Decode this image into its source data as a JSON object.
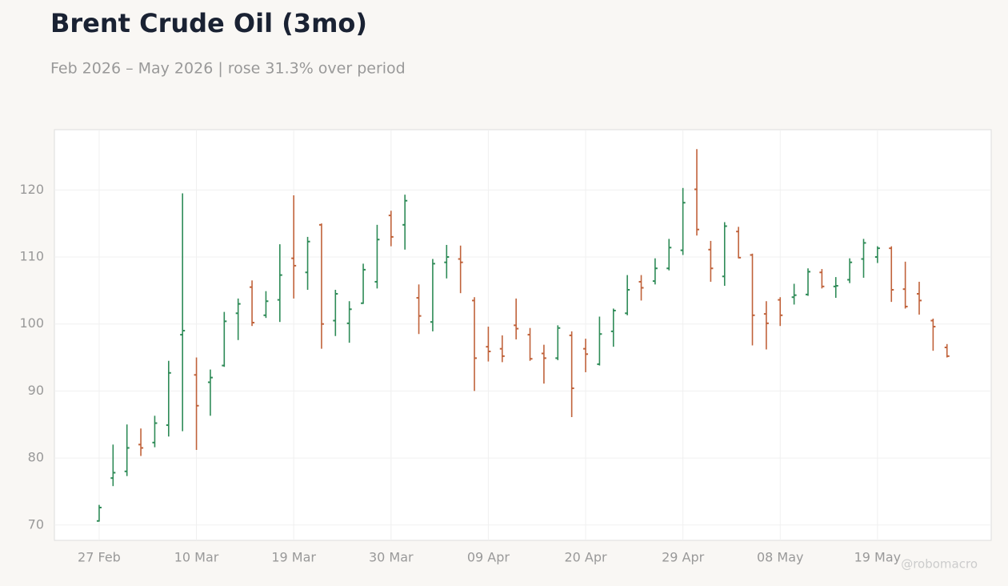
{
  "chart_data": {
    "type": "ohlc",
    "title": "Brent Crude Oil (3mo)",
    "subtitle": "Feb 2026 – May 2026 | rose 31.3% over period",
    "watermark": "@robomacro",
    "categories": [
      "27 Feb",
      null,
      null,
      null,
      null,
      null,
      null,
      "10 Mar",
      null,
      null,
      null,
      null,
      null,
      null,
      "19 Mar",
      null,
      null,
      null,
      null,
      null,
      null,
      "30 Mar",
      null,
      null,
      null,
      null,
      null,
      null,
      "09 Apr",
      null,
      null,
      null,
      null,
      null,
      null,
      "20 Apr",
      null,
      null,
      null,
      null,
      null,
      null,
      "29 Apr",
      null,
      null,
      null,
      null,
      null,
      null,
      "08 May",
      null,
      null,
      null,
      null,
      null,
      null,
      "19 May",
      null,
      null,
      null,
      null,
      null
    ],
    "open": [
      70.6,
      77,
      78,
      82,
      82.3,
      84.9,
      98.4,
      92.4,
      91.3,
      93.8,
      101.6,
      105.5,
      101.3,
      103.6,
      109.8,
      107.7,
      114.8,
      100.5,
      100.1,
      103.1,
      106.3,
      116.2,
      114.8,
      103.9,
      100.3,
      109.2,
      109.7,
      103.5,
      96.6,
      96.3,
      99.8,
      98.4,
      95.6,
      94.9,
      98.3,
      96.3,
      94,
      98.9,
      101.6,
      106.3,
      106.4,
      108.3,
      111,
      120.1,
      111.1,
      107.1,
      113.8,
      110.3,
      101.5,
      103.6,
      104,
      104.4,
      107.7,
      105.6,
      106.6,
      109.7,
      110,
      111.3,
      105.2,
      104.5,
      100.5,
      96.5
    ],
    "high": [
      73,
      82,
      85,
      84.4,
      86.3,
      94.5,
      119.5,
      95,
      93.2,
      101.8,
      103.8,
      106.5,
      104.9,
      111.9,
      119.2,
      113,
      115,
      105.1,
      103.4,
      109,
      114.8,
      116.9,
      119.3,
      105.9,
      109.7,
      111.8,
      111.7,
      104,
      99.6,
      98.3,
      103.8,
      99.4,
      96.9,
      99.8,
      98.9,
      97.8,
      101.1,
      102.3,
      107.3,
      107.3,
      109.8,
      112.7,
      120.3,
      126.1,
      112.4,
      115.2,
      114.5,
      110.5,
      103.4,
      104,
      106,
      108.3,
      108.2,
      107,
      109.8,
      112.7,
      111.6,
      111.6,
      109.3,
      106.3,
      100.8,
      97
    ],
    "low": [
      70.5,
      75.8,
      77.3,
      80.3,
      81.6,
      83.2,
      84,
      81.2,
      86.3,
      93.6,
      97.6,
      99.7,
      100.9,
      100.3,
      103.8,
      105.1,
      96.3,
      98.2,
      97.2,
      103,
      105.3,
      111.6,
      111.1,
      98.5,
      98.9,
      106.8,
      104.6,
      90,
      94.4,
      94.3,
      97.7,
      94.5,
      91.1,
      94.6,
      86.1,
      92.8,
      93.8,
      96.6,
      101.3,
      103.5,
      105.9,
      108,
      110.3,
      113.2,
      106.3,
      105.7,
      109.8,
      96.8,
      96.2,
      99.7,
      102.9,
      104.2,
      105.3,
      103.9,
      106.1,
      106.9,
      109.1,
      103.3,
      102.3,
      101.4,
      96,
      95
    ],
    "close": [
      72.6,
      77.8,
      81.5,
      81.5,
      85.2,
      92.7,
      99,
      87.8,
      92,
      100.4,
      103,
      100.2,
      103.4,
      107.3,
      108.7,
      112.3,
      100,
      104.5,
      102.2,
      108.1,
      112.6,
      113,
      118.4,
      101.2,
      109,
      110,
      109.2,
      94.9,
      95.9,
      95.2,
      99.3,
      94.8,
      94.9,
      99.4,
      90.4,
      95.5,
      98.5,
      102,
      105.1,
      105.4,
      108.3,
      111.4,
      118.1,
      114.1,
      108.3,
      114.6,
      109.9,
      101.3,
      100.1,
      101.3,
      104.3,
      107.8,
      105.6,
      105.7,
      109.2,
      112.1,
      111.3,
      105.1,
      102.6,
      103.5,
      99.6,
      95.2
    ],
    "up_color": "#2e8b57",
    "down_color": "#c0623a",
    "ylim": [
      67.7,
      129
    ],
    "yticks": [
      70,
      80,
      90,
      100,
      110,
      120
    ],
    "grid": true
  }
}
